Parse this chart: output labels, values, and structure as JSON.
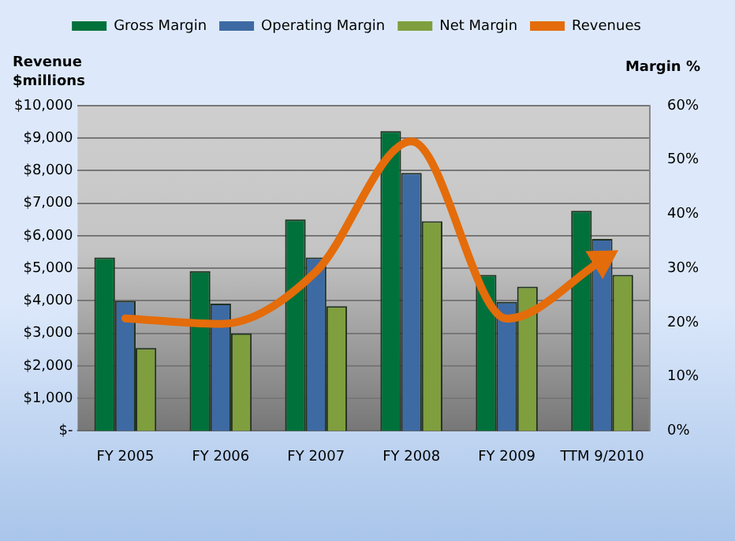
{
  "chart_data": {
    "type": "bar",
    "ylabel": "Revenue $millions",
    "y2label": "Margin %",
    "categories": [
      "FY 2005",
      "FY 2006",
      "FY 2007",
      "FY 2008",
      "FY 2009",
      "TTM 9/2010"
    ],
    "series": [
      {
        "name": "Gross Margin",
        "color": "#00713a",
        "axis": "y2",
        "values": [
          32,
          29.5,
          39,
          55.3,
          28.8,
          40.6
        ]
      },
      {
        "name": "Operating Margin",
        "color": "#3d6aa3",
        "axis": "y2",
        "values": [
          24,
          23.5,
          32,
          47.6,
          23.8,
          35.4
        ]
      },
      {
        "name": "Net Margin",
        "color": "#7f9e3e",
        "axis": "y2",
        "values": [
          15.3,
          18,
          23,
          38.7,
          26.6,
          28.8
        ]
      },
      {
        "name": "Revenues",
        "type": "line",
        "color": "#e46c0a",
        "values": [
          3460,
          3290,
          4900,
          8900,
          3450,
          5250
        ]
      }
    ],
    "ylim": [
      0,
      10000
    ],
    "yticks": [
      {
        "value": 0,
        "label": "$-"
      },
      {
        "value": 1000,
        "label": "$1,000"
      },
      {
        "value": 2000,
        "label": "$2,000"
      },
      {
        "value": 3000,
        "label": "$3,000"
      },
      {
        "value": 4000,
        "label": "$4,000"
      },
      {
        "value": 5000,
        "label": "$5,000"
      },
      {
        "value": 6000,
        "label": "$6,000"
      },
      {
        "value": 7000,
        "label": "$7,000"
      },
      {
        "value": 8000,
        "label": "$8,000"
      },
      {
        "value": 9000,
        "label": "$9,000"
      },
      {
        "value": 10000,
        "label": "$10,000"
      }
    ],
    "y2lim": [
      0,
      60
    ],
    "y2ticks": [
      {
        "value": 0,
        "label": "0%"
      },
      {
        "value": 10,
        "label": "10%"
      },
      {
        "value": 20,
        "label": "20%"
      },
      {
        "value": 30,
        "label": "30%"
      },
      {
        "value": 40,
        "label": "40%"
      },
      {
        "value": 50,
        "label": "50%"
      },
      {
        "value": 60,
        "label": "60%"
      }
    ],
    "grid": "y",
    "legend": "top",
    "marker": "none",
    "line_style": "solid"
  }
}
